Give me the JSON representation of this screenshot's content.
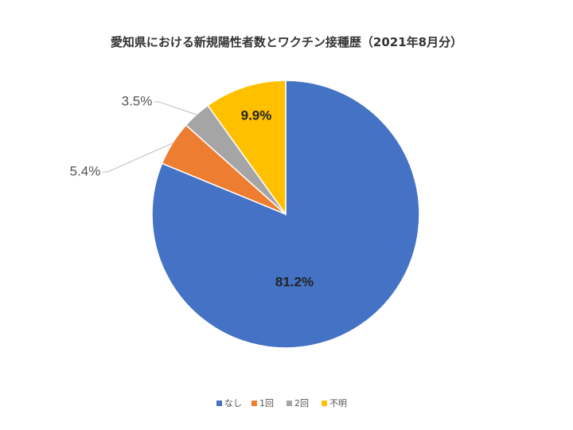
{
  "chart_data": {
    "type": "pie",
    "title": "愛知県における新規陽性者数とワクチン接種歴（2021年8月分）",
    "categories": [
      "なし",
      "1回",
      "2回",
      "不明"
    ],
    "values": [
      81.2,
      5.4,
      3.5,
      9.9
    ],
    "value_labels": [
      "81.2%",
      "5.4%",
      "3.5%",
      "9.9%"
    ],
    "colors": [
      "#4472C4",
      "#ED7D31",
      "#A5A5A5",
      "#FFC000"
    ],
    "legend_position": "bottom",
    "start_angle": "12 o'clock",
    "direction": "clockwise"
  }
}
